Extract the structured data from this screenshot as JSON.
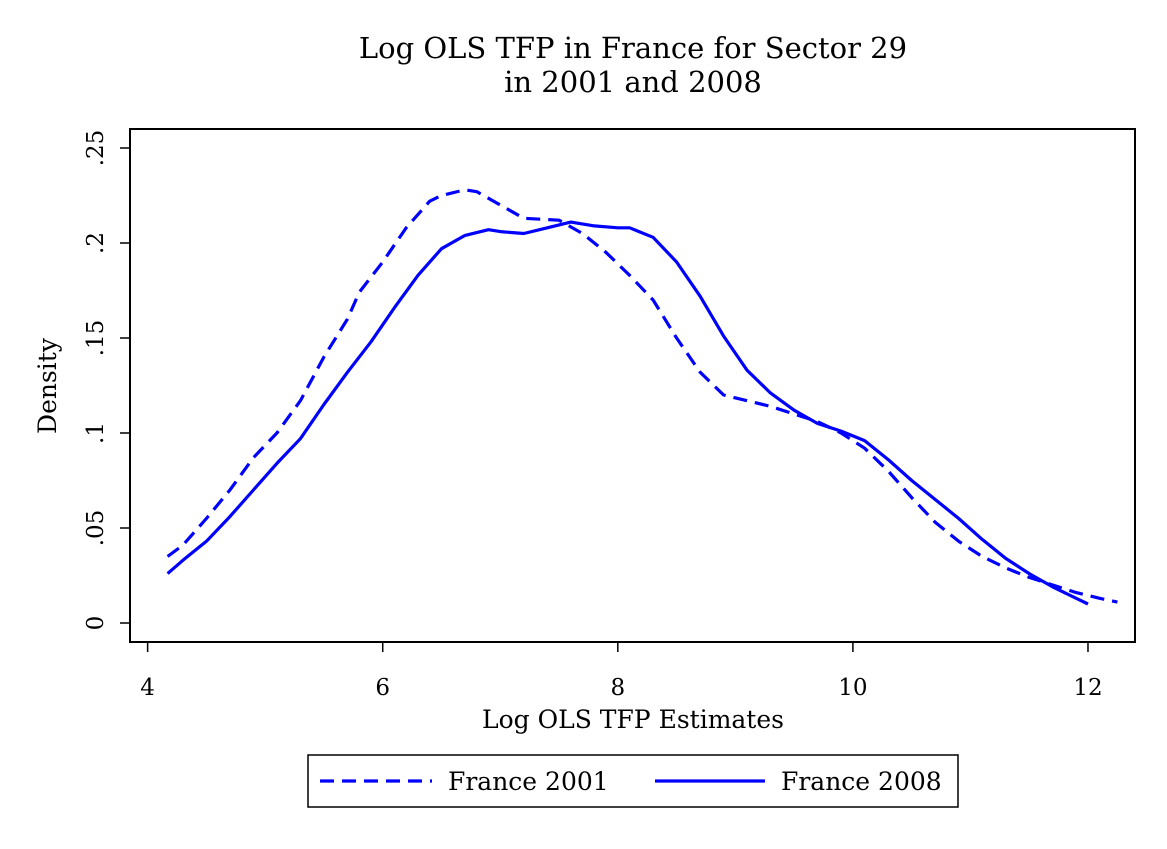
{
  "chart_data": {
    "type": "line",
    "title": "Log OLS TFP in France for Sector 29",
    "subtitle": "in 2001 and 2008",
    "xlabel": "Log OLS TFP Estimates",
    "ylabel": "Density",
    "xlim": [
      3.85,
      12.4
    ],
    "ylim": [
      -0.01,
      0.26
    ],
    "xticks": [
      4,
      6,
      8,
      10,
      12
    ],
    "xtick_labels": [
      "4",
      "6",
      "8",
      "10",
      "12"
    ],
    "yticks": [
      0,
      0.05,
      0.1,
      0.15,
      0.2,
      0.25
    ],
    "ytick_labels": [
      "0",
      ".05",
      ".1",
      ".15",
      ".2",
      ".25"
    ],
    "grid": false,
    "legend_position": "bottom",
    "colors": {
      "series": "#0000ff",
      "axis": "#000000",
      "background": "#ffffff"
    },
    "series": [
      {
        "name": "France 2001",
        "style": "dashed",
        "x": [
          4.17,
          4.3,
          4.5,
          4.7,
          4.9,
          5.1,
          5.3,
          5.5,
          5.7,
          5.8,
          6.0,
          6.2,
          6.4,
          6.5,
          6.7,
          6.8,
          7.0,
          7.2,
          7.5,
          7.7,
          7.9,
          8.1,
          8.3,
          8.5,
          8.7,
          8.9,
          9.1,
          9.3,
          9.5,
          9.7,
          9.9,
          10.1,
          10.3,
          10.5,
          10.7,
          10.9,
          11.1,
          11.3,
          11.5,
          11.7,
          11.9,
          12.1,
          12.25
        ],
        "y": [
          0.035,
          0.041,
          0.055,
          0.07,
          0.087,
          0.1,
          0.117,
          0.14,
          0.16,
          0.174,
          0.19,
          0.208,
          0.222,
          0.225,
          0.228,
          0.227,
          0.22,
          0.213,
          0.212,
          0.205,
          0.195,
          0.183,
          0.17,
          0.15,
          0.132,
          0.12,
          0.117,
          0.114,
          0.11,
          0.106,
          0.1,
          0.092,
          0.08,
          0.066,
          0.053,
          0.043,
          0.035,
          0.029,
          0.024,
          0.02,
          0.016,
          0.013,
          0.011
        ]
      },
      {
        "name": "France 2008",
        "style": "solid",
        "x": [
          4.17,
          4.3,
          4.5,
          4.7,
          4.9,
          5.1,
          5.3,
          5.5,
          5.7,
          5.9,
          6.1,
          6.3,
          6.5,
          6.7,
          6.9,
          7.0,
          7.2,
          7.4,
          7.6,
          7.8,
          8.0,
          8.1,
          8.3,
          8.5,
          8.7,
          8.9,
          9.1,
          9.3,
          9.5,
          9.7,
          9.9,
          10.1,
          10.3,
          10.5,
          10.7,
          10.9,
          11.1,
          11.3,
          11.5,
          11.7,
          11.9,
          12.0
        ],
        "y": [
          0.026,
          0.033,
          0.043,
          0.056,
          0.07,
          0.084,
          0.097,
          0.115,
          0.132,
          0.148,
          0.166,
          0.183,
          0.197,
          0.204,
          0.207,
          0.206,
          0.205,
          0.208,
          0.211,
          0.209,
          0.208,
          0.208,
          0.203,
          0.19,
          0.172,
          0.151,
          0.133,
          0.121,
          0.112,
          0.105,
          0.101,
          0.096,
          0.086,
          0.075,
          0.065,
          0.055,
          0.044,
          0.034,
          0.026,
          0.019,
          0.013,
          0.01
        ]
      }
    ]
  }
}
